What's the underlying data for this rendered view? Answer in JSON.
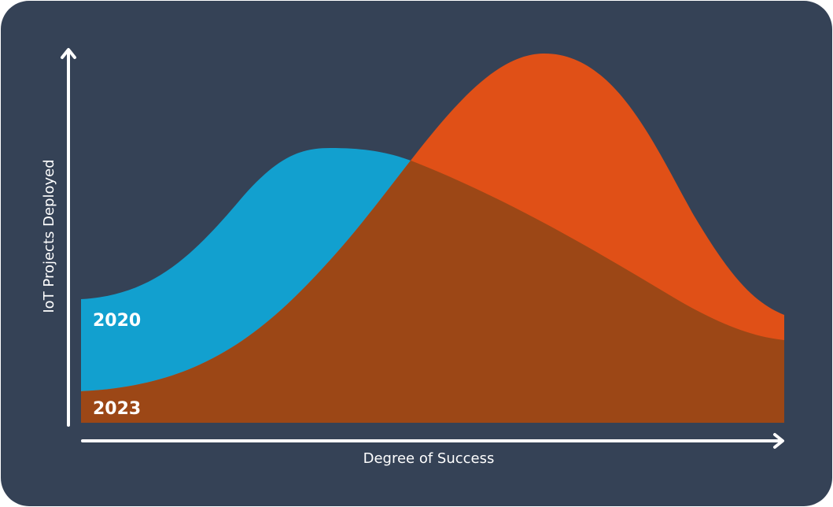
{
  "y_axis_label": "IoT Projects Deployed",
  "x_axis_label": "Degree of Success",
  "series": [
    {
      "name": "2020"
    },
    {
      "name": "2023"
    }
  ]
}
